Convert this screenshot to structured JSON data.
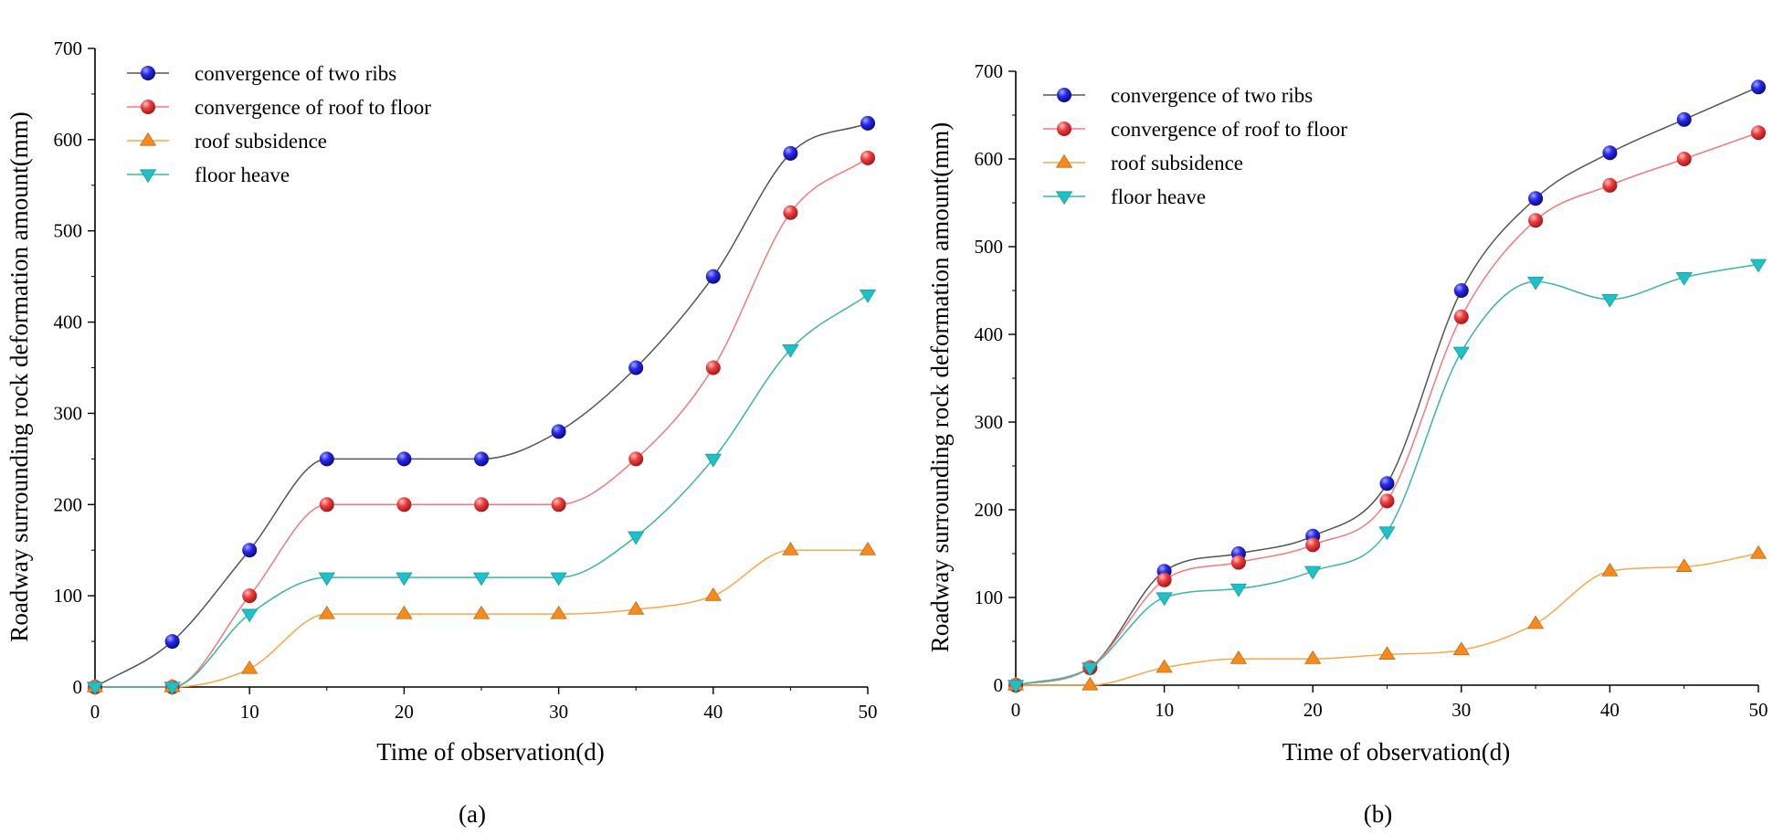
{
  "chart_data": [
    {
      "type": "line",
      "panel_label": "(a)",
      "xlabel": "Time of observation(d)",
      "ylabel": "Roadway surrounding rock deformation amount(mm)",
      "xlim": [
        0,
        50
      ],
      "ylim": [
        0,
        700
      ],
      "xticks": [
        0,
        10,
        20,
        30,
        40,
        50
      ],
      "yticks": [
        0,
        100,
        200,
        300,
        400,
        500,
        600,
        700
      ],
      "legend_position": "top-left",
      "x": [
        0,
        5,
        10,
        15,
        20,
        25,
        30,
        35,
        40,
        45,
        50
      ],
      "series": [
        {
          "name": "convergence of two ribs",
          "line_color": "#555555",
          "marker": "sphere",
          "marker_color": "#1a1adb",
          "values": [
            0,
            50,
            150,
            250,
            250,
            250,
            280,
            350,
            450,
            585,
            618
          ]
        },
        {
          "name": "convergence of  roof to floor",
          "line_color": "#f27a7a",
          "marker": "sphere",
          "marker_color": "#e03a3a",
          "values": [
            0,
            0,
            100,
            200,
            200,
            200,
            200,
            250,
            350,
            520,
            580
          ]
        },
        {
          "name": "roof subsidence",
          "line_color": "#f7a84a",
          "marker": "triangle-up",
          "marker_color": "#f58a1f",
          "values": [
            0,
            0,
            20,
            80,
            80,
            80,
            80,
            85,
            100,
            150,
            150
          ]
        },
        {
          "name": "floor heave",
          "line_color": "#3cb89a",
          "marker": "triangle-down",
          "marker_color": "#1fc1c9",
          "values": [
            0,
            0,
            80,
            120,
            120,
            120,
            120,
            165,
            250,
            370,
            430
          ]
        }
      ]
    },
    {
      "type": "line",
      "panel_label": "(b)",
      "xlabel": "Time of observation(d)",
      "ylabel": "Roadway surrounding rock deformation amount(mm)",
      "xlim": [
        0,
        50
      ],
      "ylim": [
        0,
        700
      ],
      "xticks": [
        0,
        10,
        20,
        30,
        40,
        50
      ],
      "yticks": [
        0,
        100,
        200,
        300,
        400,
        500,
        600,
        700
      ],
      "legend_position": "top-left",
      "x": [
        0,
        5,
        10,
        15,
        20,
        25,
        30,
        35,
        40,
        45,
        50
      ],
      "series": [
        {
          "name": "convergence of two ribs",
          "line_color": "#555555",
          "marker": "sphere",
          "marker_color": "#1a1adb",
          "values": [
            0,
            20,
            130,
            150,
            170,
            230,
            450,
            555,
            607,
            645,
            682
          ]
        },
        {
          "name": "convergence of  roof to floor",
          "line_color": "#f27a7a",
          "marker": "sphere",
          "marker_color": "#e03a3a",
          "values": [
            0,
            20,
            120,
            140,
            160,
            210,
            420,
            530,
            570,
            600,
            630
          ]
        },
        {
          "name": "roof subsidence",
          "line_color": "#f7a84a",
          "marker": "triangle-up",
          "marker_color": "#f58a1f",
          "values": [
            0,
            0,
            20,
            30,
            30,
            35,
            40,
            70,
            130,
            135,
            150
          ]
        },
        {
          "name": "floor heave",
          "line_color": "#3cb89a",
          "marker": "triangle-down",
          "marker_color": "#1fc1c9",
          "values": [
            0,
            20,
            100,
            110,
            130,
            175,
            380,
            460,
            440,
            465,
            480
          ]
        }
      ]
    }
  ]
}
